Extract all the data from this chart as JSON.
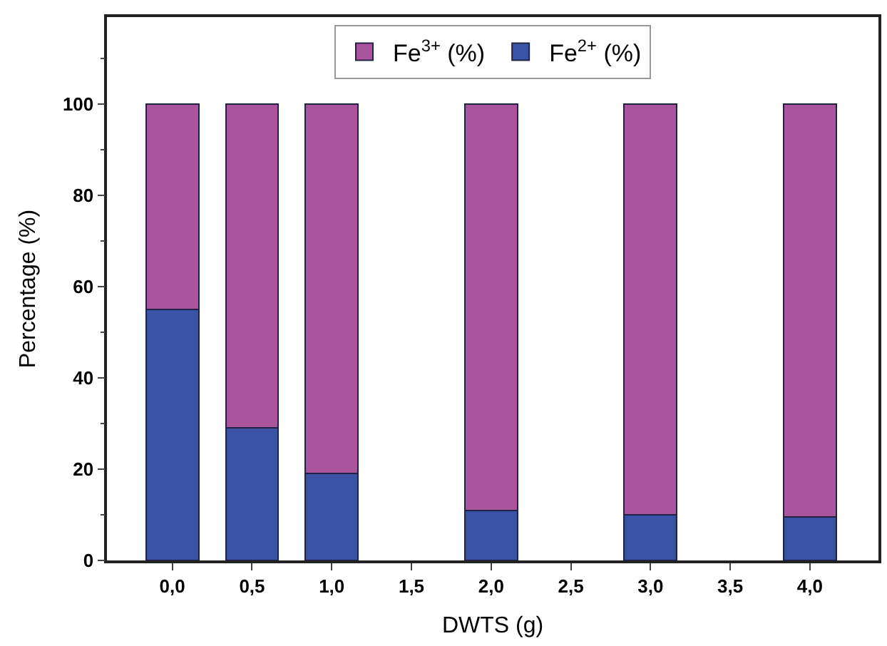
{
  "chart_data": {
    "type": "bar",
    "stacked": true,
    "xlabel": "DWTS (g)",
    "ylabel": "Percentage (%)",
    "x": [
      0,
      0.5,
      1,
      2,
      3,
      4
    ],
    "series": [
      {
        "name": "Fe$^{2+}$ (%)",
        "color": "#3a52a6",
        "values": [
          55,
          29,
          19,
          11,
          10,
          9.5
        ]
      },
      {
        "name": "Fe$^{3+}$ (%)",
        "color": "#a8559e",
        "values": [
          45,
          71,
          81,
          89,
          90,
          90.5
        ]
      }
    ],
    "xlim": [
      -0.41,
      4.43
    ],
    "xticks": [
      {
        "value": 0,
        "label": "0,0"
      },
      {
        "value": 0.5,
        "label": "0,5"
      },
      {
        "value": 1,
        "label": "1,0"
      },
      {
        "value": 1.5,
        "label": "1,5"
      },
      {
        "value": 2,
        "label": "2,0"
      },
      {
        "value": 2.5,
        "label": "2,5"
      },
      {
        "value": 3,
        "label": "3,0"
      },
      {
        "value": 3.5,
        "label": "3,5"
      },
      {
        "value": 4,
        "label": "4,0"
      }
    ],
    "ylim": [
      0,
      119
    ],
    "yticks": [
      0,
      20,
      40,
      60,
      80,
      100
    ],
    "legend": "top"
  }
}
